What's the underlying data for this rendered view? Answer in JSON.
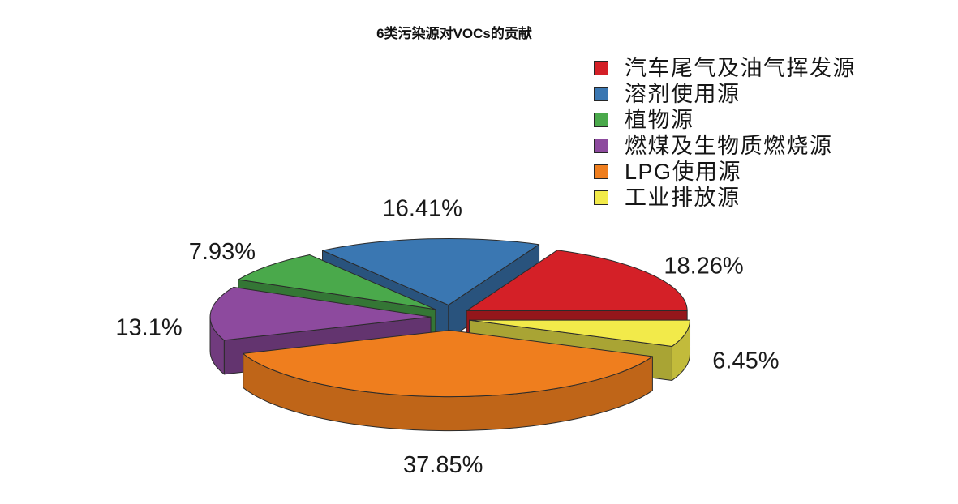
{
  "chart_data": {
    "type": "pie",
    "3d": true,
    "exploded": true,
    "title": "6类污染源对VOCs的贡献",
    "categories": [
      "汽车尾气及油气挥发源",
      "溶剂使用源",
      "植物源",
      "燃煤及生物质燃烧源",
      "LPG使用源",
      "工业排放源"
    ],
    "values": [
      18.26,
      16.41,
      7.93,
      13.1,
      37.85,
      6.45
    ],
    "labels": [
      "18.26%",
      "16.41%",
      "7.93%",
      "13.1%",
      "37.85%",
      "6.45%"
    ],
    "colors": [
      "#d42027",
      "#3a77b2",
      "#4aa94b",
      "#8d4a9e",
      "#ef7e1e",
      "#f2ea4a"
    ],
    "legend_position": "top-right"
  }
}
